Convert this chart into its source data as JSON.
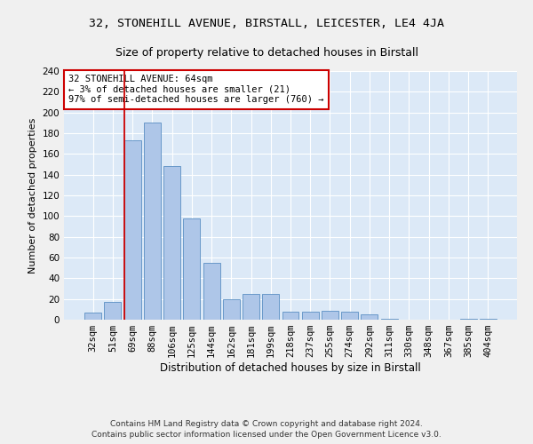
{
  "title1": "32, STONEHILL AVENUE, BIRSTALL, LEICESTER, LE4 4JA",
  "title2": "Size of property relative to detached houses in Birstall",
  "xlabel": "Distribution of detached houses by size in Birstall",
  "ylabel": "Number of detached properties",
  "categories": [
    "32sqm",
    "51sqm",
    "69sqm",
    "88sqm",
    "106sqm",
    "125sqm",
    "144sqm",
    "162sqm",
    "181sqm",
    "199sqm",
    "218sqm",
    "237sqm",
    "255sqm",
    "274sqm",
    "292sqm",
    "311sqm",
    "330sqm",
    "348sqm",
    "367sqm",
    "385sqm",
    "404sqm"
  ],
  "values": [
    7,
    17,
    173,
    190,
    148,
    98,
    55,
    20,
    25,
    25,
    8,
    8,
    9,
    8,
    5,
    1,
    0,
    0,
    0,
    1,
    1
  ],
  "bar_color": "#aec6e8",
  "bar_edge_color": "#5a8fc3",
  "annotation_text": "32 STONEHILL AVENUE: 64sqm\n← 3% of detached houses are smaller (21)\n97% of semi-detached houses are larger (760) →",
  "annotation_box_color": "#ffffff",
  "annotation_box_edge": "#cc0000",
  "vline_color": "#cc0000",
  "footer1": "Contains HM Land Registry data © Crown copyright and database right 2024.",
  "footer2": "Contains public sector information licensed under the Open Government Licence v3.0.",
  "fig_bg_color": "#f0f0f0",
  "background_color": "#dce9f7",
  "grid_color": "#ffffff",
  "ylim": [
    0,
    240
  ],
  "yticks": [
    0,
    20,
    40,
    60,
    80,
    100,
    120,
    140,
    160,
    180,
    200,
    220,
    240
  ],
  "title1_fontsize": 9.5,
  "title2_fontsize": 9,
  "xlabel_fontsize": 8.5,
  "ylabel_fontsize": 8,
  "tick_fontsize": 7.5,
  "annotation_fontsize": 7.5,
  "footer_fontsize": 6.5
}
